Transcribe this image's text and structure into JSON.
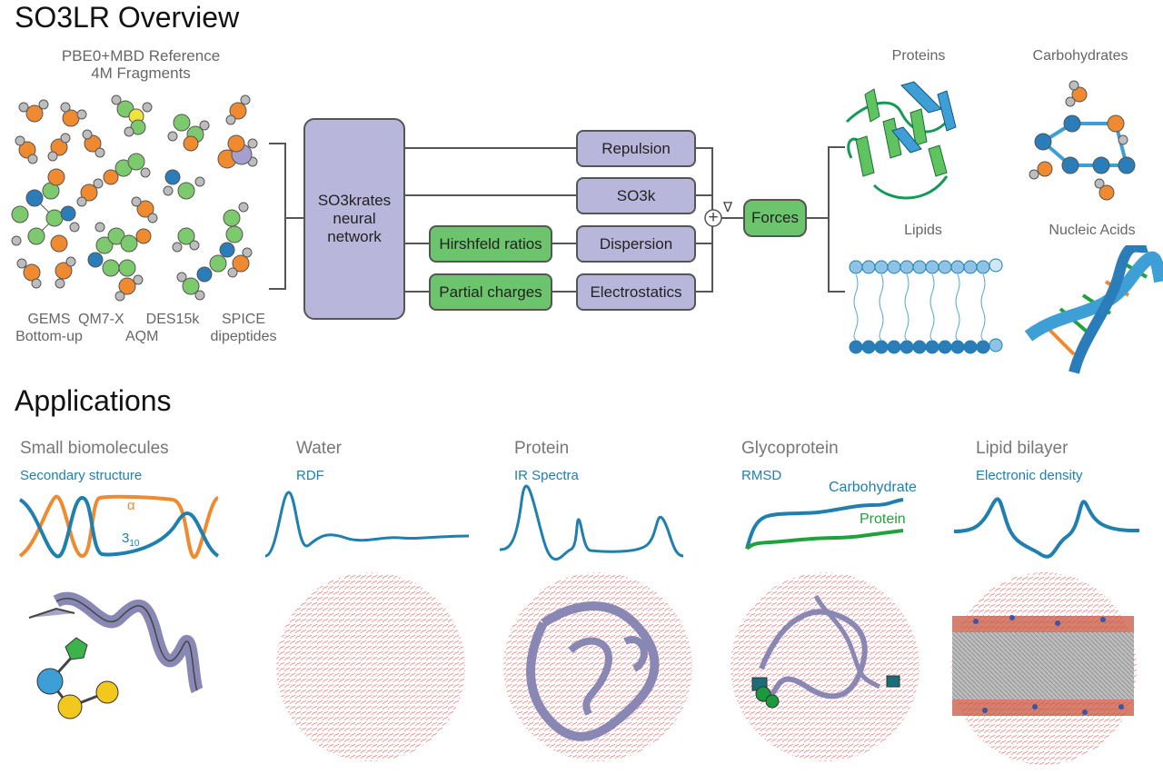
{
  "overview": {
    "title": "SO3LR Overview",
    "reference_line1": "PBE0+MBD Reference",
    "reference_line2": "4M Fragments",
    "datasets": {
      "gems": "GEMS",
      "bottom_up": "Bottom-up",
      "qm7x": "QM7-X",
      "aqm": "AQM",
      "des15k": "DES15k",
      "spice": "SPICE",
      "dipeptides": "dipeptides"
    },
    "network_label": "SO3krates neural network",
    "terms": {
      "repulsion": "Repulsion",
      "so3k": "SO3k",
      "dispersion": "Dispersion",
      "electrostatics": "Electrostatics"
    },
    "inputs": {
      "hirshfeld": "Hirshfeld ratios",
      "charges": "Partial charges"
    },
    "forces": "Forces",
    "sum_symbol": "+",
    "grad_symbol": "∇",
    "systems": {
      "proteins": "Proteins",
      "carbohydrates": "Carbohydrates",
      "lipids": "Lipids",
      "nucleic_acids": "Nucleic Acids"
    }
  },
  "applications": {
    "title": "Applications",
    "panels": [
      {
        "name": "Small biomolecules",
        "plot": "Secondary structure",
        "annot1": "α",
        "annot2": "3",
        "annot2_sub": "10"
      },
      {
        "name": "Water",
        "plot": "RDF"
      },
      {
        "name": "Protein",
        "plot": "IR Spectra"
      },
      {
        "name": "Glycoprotein",
        "plot": "RMSD",
        "annot1": "Carbohydrate",
        "annot2": "Protein"
      },
      {
        "name": "Lipid bilayer",
        "plot": "Electronic density"
      }
    ]
  },
  "colors": {
    "purple_box": "#b9b6dc",
    "green_box": "#6cc46c",
    "curve_blue": "#1f7fae",
    "curve_orange": "#f08a30",
    "curve_green": "#1fa23c",
    "atom_orange": "#f08a30",
    "atom_green": "#7dca6e",
    "atom_blue": "#2a7db8",
    "atom_grey": "#bdbdbd",
    "atom_yellow": "#f2e33a"
  }
}
